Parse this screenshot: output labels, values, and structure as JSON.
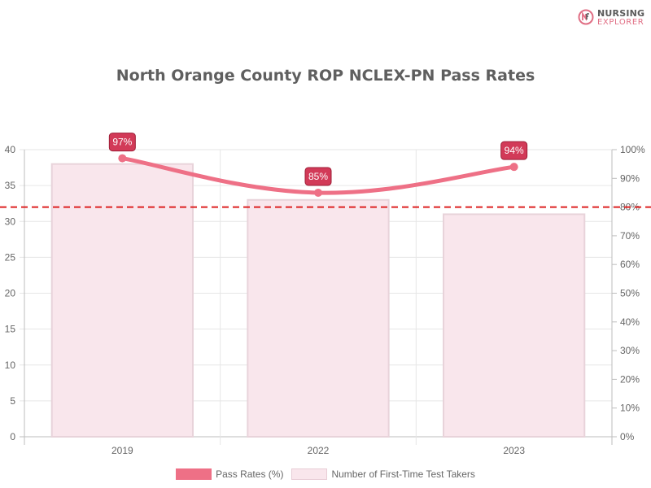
{
  "brand": {
    "line1": "NURSING",
    "line2": "EXPLORER",
    "logo_mark": "nurse-cap-logo",
    "accent": "#e06e84"
  },
  "chart_data": {
    "type": "bar",
    "title": "North Orange County ROP NCLEX-PN Pass Rates",
    "categories": [
      "2019",
      "2022",
      "2023"
    ],
    "series": [
      {
        "name": "Number of First-Time Test Takers",
        "type": "bar",
        "values": [
          38,
          33,
          31
        ],
        "axis": "left",
        "color": "#f9e6ec"
      },
      {
        "name": "Pass Rates (%)",
        "type": "line",
        "values": [
          97,
          85,
          94
        ],
        "axis": "right",
        "color": "#ee7086",
        "labels": [
          "97%",
          "85%",
          "94%"
        ]
      }
    ],
    "y_left": {
      "min": 0,
      "max": 40,
      "ticks": [
        "0",
        "5",
        "10",
        "15",
        "20",
        "25",
        "30",
        "35",
        "40"
      ]
    },
    "y_right": {
      "min": 0,
      "max": 100,
      "ticks": [
        "0%",
        "10%",
        "20%",
        "30%",
        "40%",
        "50%",
        "60%",
        "70%",
        "80%",
        "90%",
        "100%"
      ]
    },
    "reference_line": {
      "value": 80,
      "axis": "right",
      "color": "#dd2222",
      "style": "dashed"
    },
    "grid": true,
    "legend_position": "bottom"
  }
}
